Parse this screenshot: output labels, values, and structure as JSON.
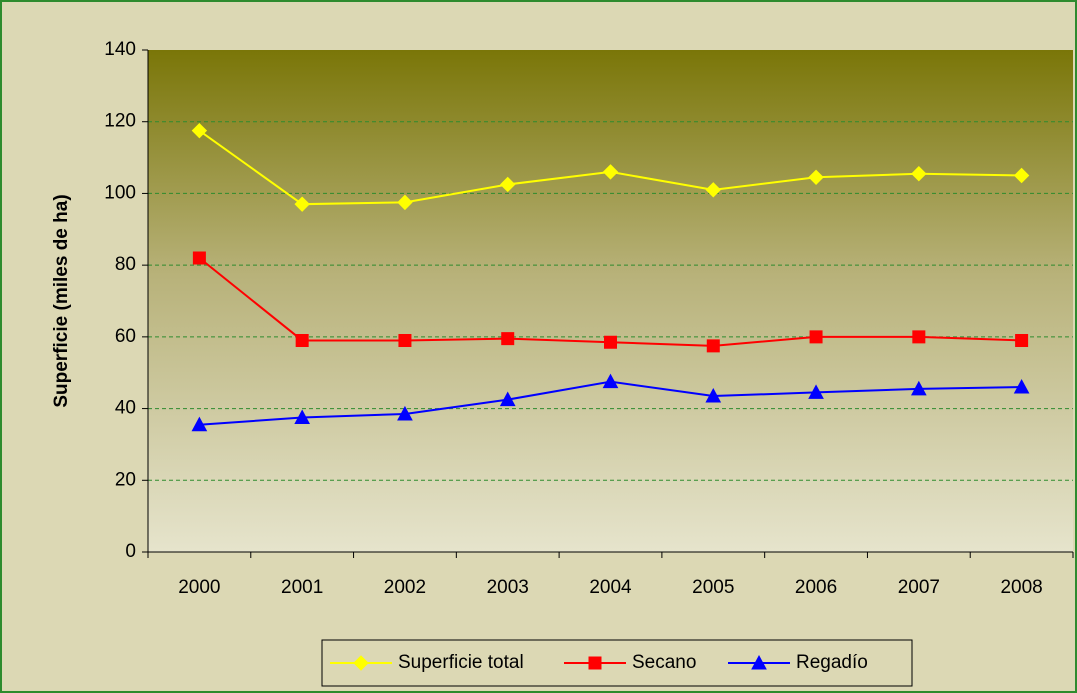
{
  "chart_data": {
    "type": "line",
    "y_label": "Superficie (miles de ha)",
    "categories": [
      "2000",
      "2001",
      "2002",
      "2003",
      "2004",
      "2005",
      "2006",
      "2007",
      "2008"
    ],
    "series": [
      {
        "name": "Superficie total",
        "color": "#ffff00",
        "marker": "diamond",
        "values": [
          117.5,
          97,
          97.5,
          102.5,
          106,
          101,
          104.5,
          105.5,
          105
        ]
      },
      {
        "name": "Secano",
        "color": "#ff0000",
        "marker": "square",
        "values": [
          82,
          59,
          59,
          59.5,
          58.5,
          57.5,
          60,
          60,
          59
        ]
      },
      {
        "name": "Regadío",
        "color": "#0000ff",
        "marker": "triangle",
        "values": [
          35.5,
          37.5,
          38.5,
          42.5,
          47.5,
          43.5,
          44.5,
          45.5,
          46
        ]
      }
    ],
    "ylim": [
      0,
      140
    ],
    "yticks": [
      0,
      20,
      40,
      60,
      80,
      100,
      120,
      140
    ],
    "grid": true
  }
}
